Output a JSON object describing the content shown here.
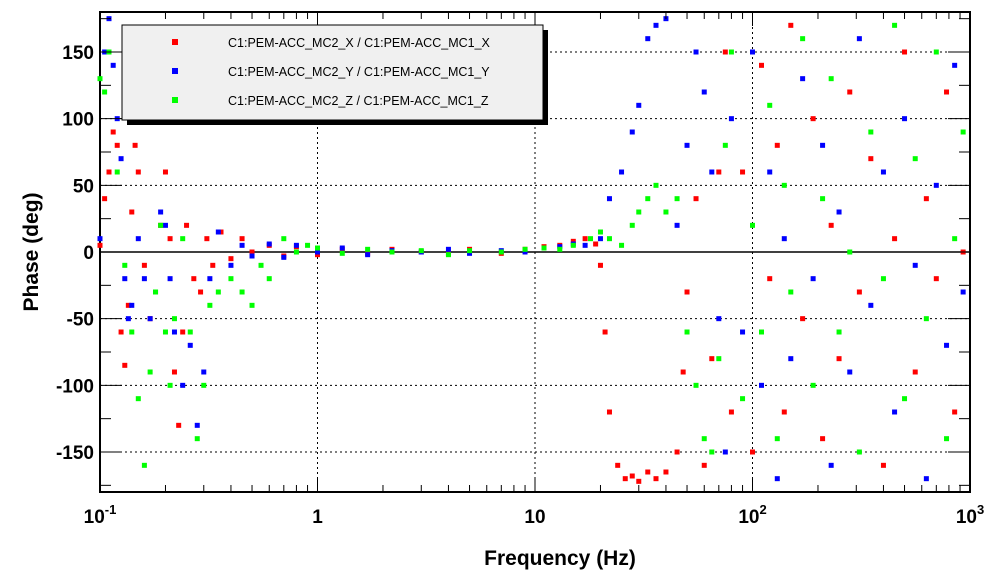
{
  "chart_data": {
    "type": "scatter",
    "xlabel": "Frequency (Hz)",
    "ylabel": "Phase (deg)",
    "xscale": "log",
    "xlim": [
      0.1,
      1000
    ],
    "ylim": [
      -180,
      180
    ],
    "grid": true,
    "legend_position": "top-left",
    "x_tick_labels": [
      {
        "value": 0.1,
        "base": "10",
        "exp": "-1"
      },
      {
        "value": 1,
        "base": "1",
        "exp": ""
      },
      {
        "value": 10,
        "base": "10",
        "exp": ""
      },
      {
        "value": 100,
        "base": "10",
        "exp": "2"
      },
      {
        "value": 1000,
        "base": "10",
        "exp": "3"
      }
    ],
    "y_ticks": [
      -150,
      -100,
      -50,
      0,
      50,
      100,
      150
    ],
    "y_tick_labels": [
      "-150",
      "-100",
      "-50",
      "0",
      "50",
      "100",
      "150"
    ],
    "series": [
      {
        "name": "C1:PEM-ACC_MC2_X / C1:PEM-ACC_MC1_X",
        "color": "#ff0000",
        "points": [
          [
            0.1,
            5
          ],
          [
            0.105,
            40
          ],
          [
            0.11,
            60
          ],
          [
            0.115,
            90
          ],
          [
            0.12,
            80
          ],
          [
            0.125,
            -60
          ],
          [
            0.13,
            -85
          ],
          [
            0.135,
            -40
          ],
          [
            0.14,
            30
          ],
          [
            0.145,
            80
          ],
          [
            0.15,
            60
          ],
          [
            0.16,
            -10
          ],
          [
            0.17,
            -50
          ],
          [
            0.18,
            -30
          ],
          [
            0.19,
            20
          ],
          [
            0.2,
            60
          ],
          [
            0.21,
            10
          ],
          [
            0.22,
            -90
          ],
          [
            0.23,
            -130
          ],
          [
            0.24,
            -60
          ],
          [
            0.25,
            20
          ],
          [
            0.27,
            -20
          ],
          [
            0.29,
            -30
          ],
          [
            0.31,
            10
          ],
          [
            0.33,
            -10
          ],
          [
            0.36,
            15
          ],
          [
            0.4,
            -5
          ],
          [
            0.45,
            10
          ],
          [
            0.5,
            0
          ],
          [
            0.6,
            5
          ],
          [
            0.7,
            -3
          ],
          [
            0.8,
            4
          ],
          [
            1.0,
            -2
          ],
          [
            1.3,
            2
          ],
          [
            1.7,
            -1
          ],
          [
            2.2,
            2
          ],
          [
            3,
            0
          ],
          [
            4,
            -1
          ],
          [
            5,
            2
          ],
          [
            7,
            -1
          ],
          [
            9,
            2
          ],
          [
            11,
            4
          ],
          [
            13,
            5
          ],
          [
            15,
            8
          ],
          [
            17,
            10
          ],
          [
            19,
            6
          ],
          [
            20,
            -10
          ],
          [
            21,
            -60
          ],
          [
            22,
            -120
          ],
          [
            24,
            -160
          ],
          [
            26,
            -170
          ],
          [
            28,
            -168
          ],
          [
            30,
            -172
          ],
          [
            33,
            -165
          ],
          [
            36,
            -170
          ],
          [
            40,
            -165
          ],
          [
            45,
            -150
          ],
          [
            48,
            -90
          ],
          [
            50,
            -30
          ],
          [
            55,
            40
          ],
          [
            60,
            -160
          ],
          [
            65,
            -80
          ],
          [
            70,
            60
          ],
          [
            75,
            150
          ],
          [
            80,
            -120
          ],
          [
            90,
            60
          ],
          [
            100,
            -150
          ],
          [
            110,
            140
          ],
          [
            120,
            -20
          ],
          [
            130,
            80
          ],
          [
            140,
            -120
          ],
          [
            150,
            170
          ],
          [
            170,
            -50
          ],
          [
            190,
            100
          ],
          [
            210,
            -140
          ],
          [
            230,
            20
          ],
          [
            250,
            -80
          ],
          [
            280,
            120
          ],
          [
            310,
            -30
          ],
          [
            350,
            70
          ],
          [
            400,
            -160
          ],
          [
            450,
            10
          ],
          [
            500,
            150
          ],
          [
            560,
            -90
          ],
          [
            630,
            40
          ],
          [
            700,
            -20
          ],
          [
            780,
            120
          ],
          [
            850,
            -120
          ],
          [
            930,
            0
          ]
        ]
      },
      {
        "name": "C1:PEM-ACC_MC2_Y / C1:PEM-ACC_MC1_Y",
        "color": "#0000ff",
        "points": [
          [
            0.1,
            10
          ],
          [
            0.105,
            150
          ],
          [
            0.11,
            175
          ],
          [
            0.115,
            140
          ],
          [
            0.12,
            100
          ],
          [
            0.125,
            70
          ],
          [
            0.13,
            -20
          ],
          [
            0.135,
            -50
          ],
          [
            0.14,
            -40
          ],
          [
            0.15,
            10
          ],
          [
            0.16,
            -20
          ],
          [
            0.17,
            -50
          ],
          [
            0.18,
            -30
          ],
          [
            0.19,
            30
          ],
          [
            0.2,
            20
          ],
          [
            0.21,
            -20
          ],
          [
            0.22,
            -60
          ],
          [
            0.24,
            -100
          ],
          [
            0.26,
            -70
          ],
          [
            0.28,
            -130
          ],
          [
            0.3,
            -90
          ],
          [
            0.32,
            -20
          ],
          [
            0.35,
            15
          ],
          [
            0.4,
            -10
          ],
          [
            0.45,
            5
          ],
          [
            0.5,
            -3
          ],
          [
            0.6,
            6
          ],
          [
            0.7,
            -4
          ],
          [
            0.8,
            5
          ],
          [
            1.0,
            0
          ],
          [
            1.3,
            3
          ],
          [
            1.7,
            -2
          ],
          [
            2.2,
            1
          ],
          [
            3,
            0
          ],
          [
            4,
            2
          ],
          [
            5,
            -1
          ],
          [
            7,
            1
          ],
          [
            9,
            0
          ],
          [
            11,
            3
          ],
          [
            13,
            4
          ],
          [
            15,
            6
          ],
          [
            17,
            5
          ],
          [
            20,
            10
          ],
          [
            22,
            40
          ],
          [
            25,
            60
          ],
          [
            28,
            90
          ],
          [
            30,
            110
          ],
          [
            33,
            160
          ],
          [
            36,
            170
          ],
          [
            40,
            175
          ],
          [
            45,
            20
          ],
          [
            50,
            80
          ],
          [
            55,
            150
          ],
          [
            60,
            120
          ],
          [
            65,
            60
          ],
          [
            70,
            -50
          ],
          [
            75,
            -150
          ],
          [
            80,
            100
          ],
          [
            90,
            -60
          ],
          [
            100,
            150
          ],
          [
            110,
            -100
          ],
          [
            120,
            60
          ],
          [
            130,
            -170
          ],
          [
            140,
            10
          ],
          [
            150,
            -80
          ],
          [
            170,
            130
          ],
          [
            190,
            -20
          ],
          [
            210,
            80
          ],
          [
            230,
            -160
          ],
          [
            250,
            30
          ],
          [
            280,
            -90
          ],
          [
            310,
            160
          ],
          [
            350,
            -40
          ],
          [
            400,
            60
          ],
          [
            450,
            -120
          ],
          [
            500,
            100
          ],
          [
            560,
            -10
          ],
          [
            630,
            -170
          ],
          [
            700,
            50
          ],
          [
            780,
            -70
          ],
          [
            850,
            140
          ],
          [
            930,
            -30
          ]
        ]
      },
      {
        "name": "C1:PEM-ACC_MC2_Z / C1:PEM-ACC_MC1_Z",
        "color": "#00ff00",
        "points": [
          [
            0.1,
            130
          ],
          [
            0.105,
            120
          ],
          [
            0.11,
            150
          ],
          [
            0.12,
            60
          ],
          [
            0.13,
            -10
          ],
          [
            0.14,
            -60
          ],
          [
            0.15,
            -110
          ],
          [
            0.16,
            -160
          ],
          [
            0.17,
            -90
          ],
          [
            0.18,
            -30
          ],
          [
            0.19,
            20
          ],
          [
            0.2,
            -60
          ],
          [
            0.21,
            -100
          ],
          [
            0.22,
            -50
          ],
          [
            0.24,
            10
          ],
          [
            0.26,
            -60
          ],
          [
            0.28,
            -140
          ],
          [
            0.3,
            -100
          ],
          [
            0.32,
            -40
          ],
          [
            0.35,
            -30
          ],
          [
            0.4,
            -20
          ],
          [
            0.45,
            -30
          ],
          [
            0.5,
            -40
          ],
          [
            0.55,
            -10
          ],
          [
            0.6,
            -20
          ],
          [
            0.7,
            10
          ],
          [
            0.8,
            0
          ],
          [
            0.9,
            5
          ],
          [
            1.0,
            3
          ],
          [
            1.3,
            -1
          ],
          [
            1.7,
            2
          ],
          [
            2.2,
            0
          ],
          [
            3,
            1
          ],
          [
            4,
            -2
          ],
          [
            5,
            1
          ],
          [
            7,
            0
          ],
          [
            9,
            2
          ],
          [
            11,
            3
          ],
          [
            13,
            2
          ],
          [
            15,
            5
          ],
          [
            18,
            10
          ],
          [
            20,
            15
          ],
          [
            22,
            10
          ],
          [
            25,
            5
          ],
          [
            28,
            20
          ],
          [
            30,
            30
          ],
          [
            33,
            40
          ],
          [
            36,
            50
          ],
          [
            40,
            30
          ],
          [
            45,
            40
          ],
          [
            50,
            -60
          ],
          [
            55,
            -100
          ],
          [
            60,
            -140
          ],
          [
            65,
            -150
          ],
          [
            70,
            -80
          ],
          [
            75,
            80
          ],
          [
            80,
            150
          ],
          [
            90,
            -110
          ],
          [
            100,
            20
          ],
          [
            110,
            -60
          ],
          [
            120,
            110
          ],
          [
            130,
            -140
          ],
          [
            140,
            50
          ],
          [
            150,
            -30
          ],
          [
            170,
            160
          ],
          [
            190,
            -100
          ],
          [
            210,
            40
          ],
          [
            230,
            130
          ],
          [
            250,
            -60
          ],
          [
            280,
            0
          ],
          [
            310,
            -150
          ],
          [
            350,
            90
          ],
          [
            400,
            -20
          ],
          [
            450,
            170
          ],
          [
            500,
            -110
          ],
          [
            560,
            70
          ],
          [
            630,
            -50
          ],
          [
            700,
            150
          ],
          [
            780,
            -140
          ],
          [
            850,
            10
          ],
          [
            930,
            90
          ]
        ]
      }
    ]
  }
}
